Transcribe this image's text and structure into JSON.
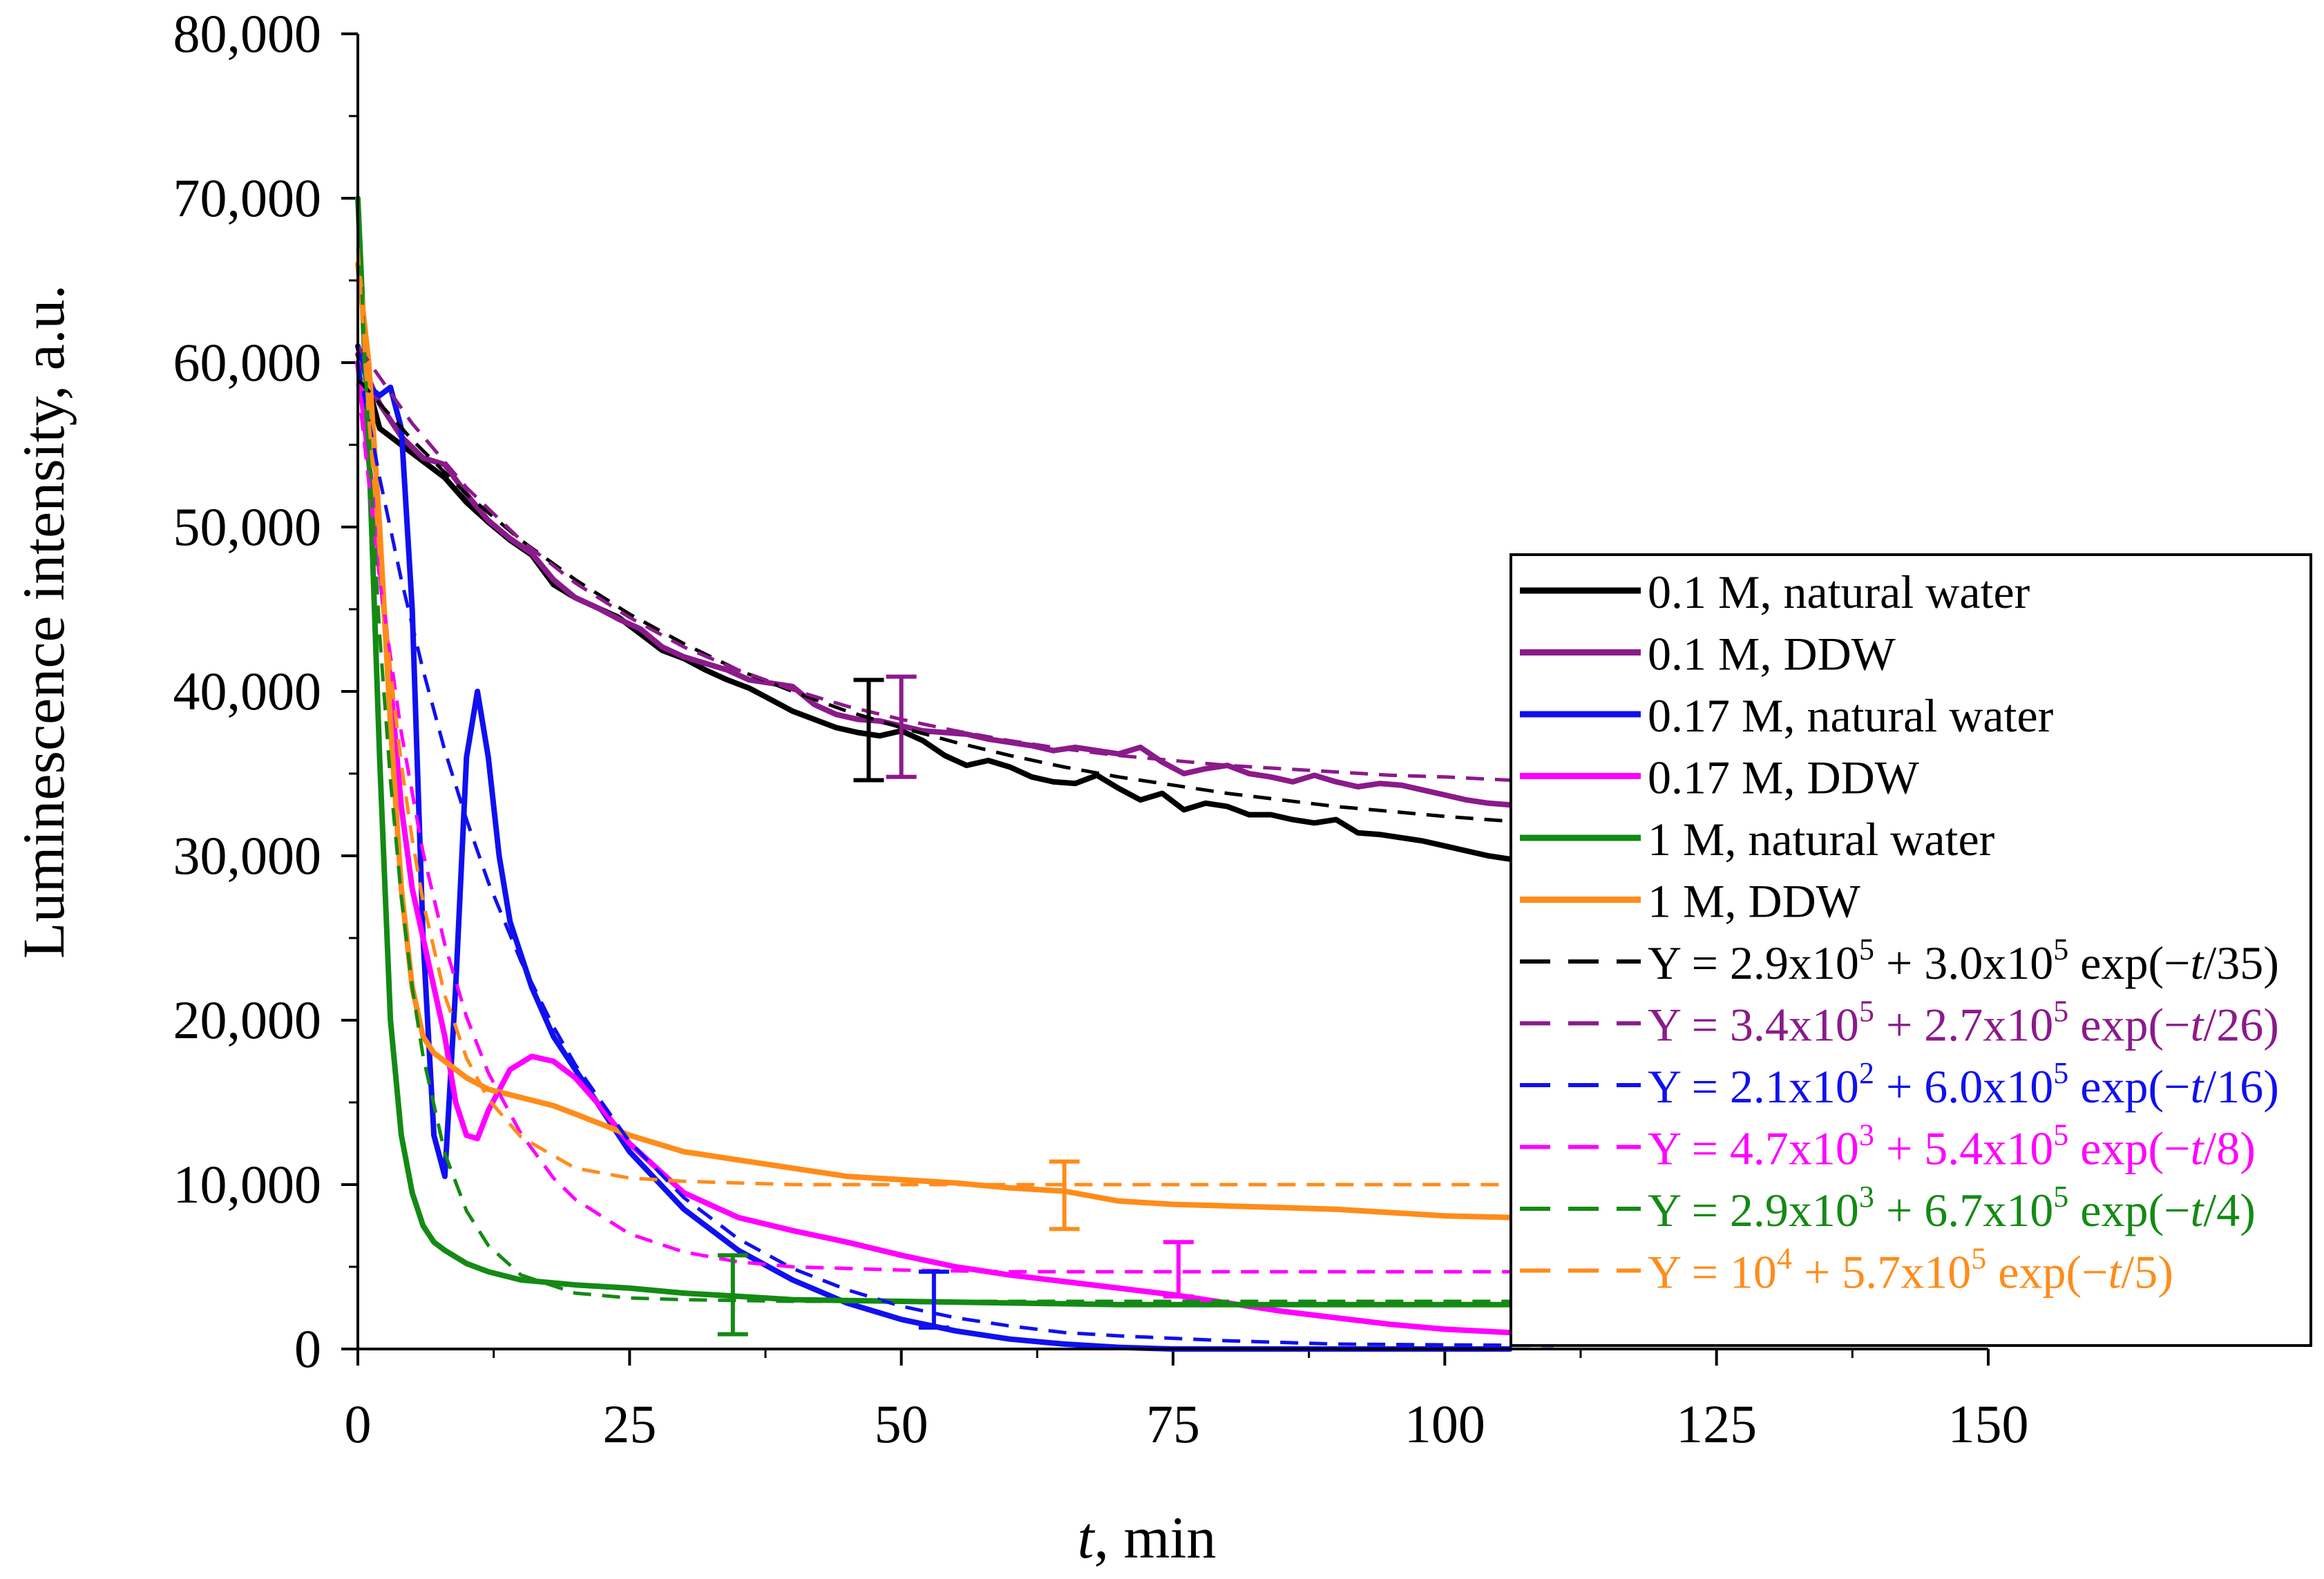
{
  "chart_data": {
    "type": "line",
    "xlabel_italic": "t",
    "xlabel_rest": ", min",
    "ylabel": "Luminescence intensity, a.u.",
    "xlim": [
      0,
      150
    ],
    "ylim": [
      0,
      80000
    ],
    "x_ticks": [
      {
        "value": 0,
        "label": "0"
      },
      {
        "value": 25,
        "label": "25"
      },
      {
        "value": 50,
        "label": "50"
      },
      {
        "value": 75,
        "label": "75"
      },
      {
        "value": 100,
        "label": "100"
      },
      {
        "value": 125,
        "label": "125"
      },
      {
        "value": 150,
        "label": "150"
      }
    ],
    "y_ticks": [
      {
        "value": 0,
        "label": "0"
      },
      {
        "value": 10000,
        "label": "10,000"
      },
      {
        "value": 20000,
        "label": "20,000"
      },
      {
        "value": 30000,
        "label": "30,000"
      },
      {
        "value": 40000,
        "label": "40,000"
      },
      {
        "value": 50000,
        "label": "50,000"
      },
      {
        "value": 60000,
        "label": "60,000"
      },
      {
        "value": 70000,
        "label": "70,000"
      },
      {
        "value": 80000,
        "label": "80,000"
      }
    ],
    "legend_position": "right",
    "series": [
      {
        "name": "0.1 M, natural water",
        "color": "#000000",
        "style": "solid",
        "x": [
          0,
          2,
          4,
          6,
          8,
          10,
          12,
          14,
          16,
          18,
          20,
          22,
          24,
          26,
          28,
          30,
          32,
          34,
          36,
          38,
          40,
          42,
          44,
          46,
          48,
          50,
          52,
          54,
          56,
          58,
          60,
          62,
          64,
          66,
          68,
          70,
          72,
          74,
          76,
          78,
          80,
          82,
          84,
          86,
          88,
          90,
          92,
          94,
          96,
          98,
          100,
          102,
          104,
          106
        ],
        "y": [
          61000,
          56000,
          55000,
          54000,
          53000,
          51500,
          50300,
          49200,
          48300,
          46500,
          45700,
          45100,
          44500,
          43500,
          42500,
          42000,
          41300,
          40700,
          40200,
          39500,
          38800,
          38300,
          37800,
          37500,
          37300,
          37600,
          37000,
          36100,
          35500,
          35800,
          35400,
          34800,
          34500,
          34400,
          34900,
          34100,
          33400,
          33800,
          32800,
          33200,
          33000,
          32500,
          32500,
          32200,
          32000,
          32200,
          31400,
          31300,
          31100,
          30900,
          30600,
          30300,
          30000,
          29800
        ]
      },
      {
        "name": "0.1 M, DDW",
        "color": "#8B1A8B",
        "style": "solid",
        "x": [
          0,
          2,
          4,
          6,
          8,
          10,
          12,
          14,
          16,
          18,
          20,
          22,
          24,
          26,
          28,
          30,
          32,
          34,
          36,
          38,
          40,
          42,
          44,
          46,
          48,
          50,
          52,
          54,
          56,
          58,
          60,
          62,
          64,
          66,
          68,
          70,
          72,
          74,
          76,
          78,
          80,
          82,
          84,
          86,
          88,
          90,
          92,
          94,
          96,
          98,
          100,
          102,
          104,
          106
        ],
        "y": [
          60500,
          57500,
          55500,
          54200,
          53800,
          52000,
          50400,
          49300,
          48400,
          46800,
          45700,
          45100,
          44400,
          43800,
          42700,
          42100,
          41700,
          41300,
          40700,
          40500,
          40300,
          39200,
          38600,
          38300,
          38200,
          37900,
          37600,
          37500,
          37400,
          37100,
          36900,
          36700,
          36400,
          36600,
          36400,
          36200,
          36600,
          35700,
          35000,
          35300,
          35500,
          35000,
          34800,
          34500,
          34900,
          34500,
          34200,
          34400,
          34300,
          34000,
          33700,
          33400,
          33200,
          33100
        ]
      },
      {
        "name": "0.17 M, natural water",
        "color": "#1010F0",
        "style": "solid",
        "x": [
          0,
          1,
          2,
          3,
          4,
          5,
          6,
          7,
          8,
          9,
          10,
          11,
          12,
          13,
          14,
          16,
          18,
          20,
          25,
          30,
          35,
          40,
          45,
          50,
          55,
          60,
          65,
          70,
          75,
          80,
          90,
          100,
          106
        ],
        "y": [
          61000,
          58500,
          58000,
          58500,
          56000,
          45000,
          25000,
          13000,
          10500,
          22000,
          36000,
          40000,
          36000,
          30000,
          26000,
          22000,
          19000,
          17000,
          12000,
          8500,
          6000,
          4200,
          2800,
          1800,
          1100,
          600,
          300,
          100,
          0,
          0,
          0,
          0,
          0
        ]
      },
      {
        "name": "0.17 M, DDW",
        "color": "#FF00FF",
        "style": "solid",
        "x": [
          0,
          2,
          4,
          5,
          6,
          7,
          8,
          9,
          10,
          11,
          12,
          14,
          16,
          18,
          20,
          22,
          25,
          30,
          35,
          40,
          45,
          50,
          55,
          60,
          65,
          70,
          75,
          80,
          85,
          90,
          95,
          100,
          106
        ],
        "y": [
          60000,
          48000,
          33000,
          28000,
          25000,
          22000,
          19000,
          15000,
          13000,
          12800,
          14500,
          17000,
          17800,
          17500,
          16500,
          15000,
          12500,
          9500,
          8000,
          7200,
          6500,
          5700,
          5000,
          4500,
          4100,
          3700,
          3300,
          2800,
          2300,
          1900,
          1500,
          1200,
          1000
        ]
      },
      {
        "name": "1 M, natural water",
        "color": "#148A14",
        "style": "solid",
        "x": [
          0,
          1,
          2,
          3,
          4,
          5,
          6,
          7,
          8,
          10,
          12,
          15,
          20,
          25,
          30,
          35,
          40,
          50,
          60,
          70,
          80,
          90,
          100,
          106
        ],
        "y": [
          70000,
          55000,
          36000,
          20000,
          13000,
          9500,
          7500,
          6500,
          6000,
          5200,
          4700,
          4200,
          3900,
          3700,
          3400,
          3200,
          3000,
          2900,
          2800,
          2700,
          2700,
          2700,
          2700,
          2700
        ]
      },
      {
        "name": "1 M, DDW",
        "color": "#FF8C1A",
        "style": "solid",
        "x": [
          0,
          1,
          2,
          3,
          4,
          5,
          6,
          7,
          8,
          10,
          12,
          15,
          18,
          20,
          25,
          30,
          35,
          40,
          45,
          50,
          55,
          60,
          65,
          70,
          75,
          80,
          85,
          90,
          95,
          100,
          106
        ],
        "y": [
          66000,
          60000,
          50000,
          38000,
          28000,
          22000,
          19000,
          18000,
          17500,
          16500,
          15800,
          15300,
          14800,
          14300,
          13000,
          12000,
          11500,
          11000,
          10500,
          10300,
          10100,
          9800,
          9600,
          9000,
          8800,
          8700,
          8600,
          8500,
          8300,
          8100,
          8000
        ]
      },
      {
        "name": "Y = 2.9x10^5 + 3.0x10^5 exp(−t/35)",
        "color": "#000000",
        "style": "dashed",
        "x": [
          0,
          5,
          10,
          15,
          20,
          25,
          30,
          35,
          40,
          45,
          50,
          55,
          60,
          65,
          70,
          75,
          80,
          85,
          90,
          95,
          100,
          106
        ],
        "y": [
          59000,
          55300,
          52000,
          49200,
          46800,
          44700,
          42900,
          41300,
          40000,
          38800,
          37800,
          36900,
          36100,
          35400,
          34800,
          34300,
          33800,
          33400,
          33000,
          32700,
          32400,
          32100
        ]
      },
      {
        "name": "Y = 3.4x10^5 + 2.7x10^5 exp(−t/26)",
        "color": "#8B1A8B",
        "style": "dashed",
        "x": [
          0,
          5,
          10,
          15,
          20,
          25,
          30,
          35,
          40,
          45,
          50,
          55,
          60,
          65,
          70,
          75,
          80,
          85,
          90,
          95,
          100,
          106
        ],
        "y": [
          61000,
          56300,
          52400,
          49200,
          46600,
          44500,
          42700,
          41300,
          40100,
          39100,
          38300,
          37600,
          37000,
          36500,
          36100,
          35800,
          35500,
          35300,
          35100,
          34900,
          34800,
          34600
        ]
      },
      {
        "name": "Y = 2.1x10^2 + 6.0x10^5 exp(−t/16)",
        "color": "#1010F0",
        "style": "dashed",
        "x": [
          0,
          2,
          4,
          6,
          8,
          10,
          12,
          15,
          18,
          20,
          25,
          30,
          35,
          40,
          45,
          50,
          55,
          60,
          65,
          70,
          80,
          90,
          100,
          110
        ],
        "y": [
          60000,
          53000,
          46800,
          41300,
          36400,
          32200,
          28400,
          23600,
          19600,
          17300,
          12600,
          9200,
          6700,
          4900,
          3600,
          2600,
          1900,
          1400,
          1000,
          800,
          500,
          300,
          250,
          210
        ]
      },
      {
        "name": "Y = 4.7x10^3 + 5.4x10^5 exp(−t/8)",
        "color": "#FF00FF",
        "style": "dashed",
        "x": [
          0,
          2,
          4,
          6,
          8,
          10,
          12,
          15,
          18,
          20,
          25,
          30,
          35,
          40,
          45,
          50,
          60,
          70,
          80,
          90,
          100,
          106
        ],
        "y": [
          58700,
          46800,
          37500,
          30200,
          24600,
          20200,
          16800,
          13100,
          10400,
          9100,
          7000,
          5900,
          5300,
          5000,
          4900,
          4800,
          4700,
          4700,
          4700,
          4700,
          4700,
          4700
        ]
      },
      {
        "name": "Y = 2.9x10^3 + 6.7x10^5 exp(−t/4)",
        "color": "#148A14",
        "style": "dashed",
        "x": [
          0,
          1,
          2,
          3,
          4,
          5,
          6,
          8,
          10,
          12,
          15,
          20,
          25,
          30,
          40,
          50,
          60,
          80,
          100,
          106
        ],
        "y": [
          69900,
          55100,
          43500,
          34600,
          27500,
          22000,
          17800,
          11900,
          8400,
          6300,
          4500,
          3400,
          3100,
          3000,
          2900,
          2900,
          2900,
          2900,
          2900,
          2900
        ]
      },
      {
        "name": "Y = 10^4 + 5.7x10^5 exp(−t/5)",
        "color": "#FF8C1A",
        "style": "dashed",
        "x": [
          0,
          1,
          2,
          3,
          4,
          5,
          6,
          8,
          10,
          12,
          15,
          20,
          25,
          30,
          40,
          50,
          60,
          80,
          100,
          106
        ],
        "y": [
          67000,
          56700,
          48200,
          41300,
          35600,
          31000,
          27200,
          21500,
          17700,
          15200,
          12900,
          11000,
          10400,
          10200,
          10000,
          10000,
          10000,
          10000,
          10000,
          10000
        ]
      }
    ],
    "error_bars": [
      {
        "series": "0.1 M, natural water",
        "color": "#000000",
        "x": 47,
        "y_low": 34600,
        "y_high": 40700
      },
      {
        "series": "0.1 M, DDW",
        "color": "#8B1A8B",
        "x": 50,
        "y_low": 34800,
        "y_high": 40900
      },
      {
        "series": "0.17 M, natural water",
        "color": "#1010F0",
        "x": 53,
        "y_low": 1300,
        "y_high": 4700
      },
      {
        "series": "0.17 M, DDW",
        "color": "#FF00FF",
        "x": 75.5,
        "y_low": 3200,
        "y_high": 6500
      },
      {
        "series": "1 M, natural water",
        "color": "#148A14",
        "x": 34.5,
        "y_low": 900,
        "y_high": 5700
      },
      {
        "series": "1 M, DDW",
        "color": "#FF8C1A",
        "x": 65,
        "y_low": 7300,
        "y_high": 11400
      }
    ],
    "legend": [
      {
        "style": "solid",
        "color": "#000000",
        "text": "0.1 M, natural water"
      },
      {
        "style": "solid",
        "color": "#8B1A8B",
        "text": "0.1 M, DDW"
      },
      {
        "style": "solid",
        "color": "#1010F0",
        "text": "0.17 M, natural water"
      },
      {
        "style": "solid",
        "color": "#FF00FF",
        "text": "0.17 M, DDW"
      },
      {
        "style": "solid",
        "color": "#148A14",
        "text": "1 M, natural water"
      },
      {
        "style": "solid",
        "color": "#FF8C1A",
        "text": "1 M, DDW"
      },
      {
        "style": "dashed",
        "color": "#000000",
        "parts": [
          [
            "Y = 2.9x10",
            ""
          ],
          [
            "5",
            "sup"
          ],
          [
            " + 3.0x10",
            ""
          ],
          [
            "5",
            "sup"
          ],
          [
            " exp(−",
            ""
          ],
          [
            "t",
            "i"
          ],
          [
            "/35)",
            ""
          ]
        ]
      },
      {
        "style": "dashed",
        "color": "#8B1A8B",
        "parts": [
          [
            "Y = 3.4x10",
            ""
          ],
          [
            "5",
            "sup"
          ],
          [
            " + 2.7x10",
            ""
          ],
          [
            "5",
            "sup"
          ],
          [
            " exp(−",
            ""
          ],
          [
            "t",
            "i"
          ],
          [
            "/26)",
            ""
          ]
        ]
      },
      {
        "style": "dashed",
        "color": "#1010F0",
        "parts": [
          [
            "Y = 2.1x10",
            ""
          ],
          [
            "2",
            "sup"
          ],
          [
            " + 6.0x10",
            ""
          ],
          [
            "5",
            "sup"
          ],
          [
            " exp(−",
            ""
          ],
          [
            "t",
            "i"
          ],
          [
            "/16)",
            ""
          ]
        ]
      },
      {
        "style": "dashed",
        "color": "#FF00FF",
        "parts": [
          [
            "Y = 4.7x10",
            ""
          ],
          [
            "3",
            "sup"
          ],
          [
            " + 5.4x10",
            ""
          ],
          [
            "5",
            "sup"
          ],
          [
            " exp(−",
            ""
          ],
          [
            "t",
            "i"
          ],
          [
            "/8)",
            ""
          ]
        ]
      },
      {
        "style": "dashed",
        "color": "#148A14",
        "parts": [
          [
            "Y = 2.9x10",
            ""
          ],
          [
            "3",
            "sup"
          ],
          [
            " + 6.7x10",
            ""
          ],
          [
            "5",
            "sup"
          ],
          [
            " exp(−",
            ""
          ],
          [
            "t",
            "i"
          ],
          [
            "/4)",
            ""
          ]
        ]
      },
      {
        "style": "dashed",
        "color": "#FF8C1A",
        "parts": [
          [
            "Y = 10",
            ""
          ],
          [
            "4",
            "sup"
          ],
          [
            " + 5.7x10",
            ""
          ],
          [
            "5",
            "sup"
          ],
          [
            " exp(−",
            ""
          ],
          [
            "t",
            "i"
          ],
          [
            "/5)",
            ""
          ]
        ]
      }
    ]
  }
}
